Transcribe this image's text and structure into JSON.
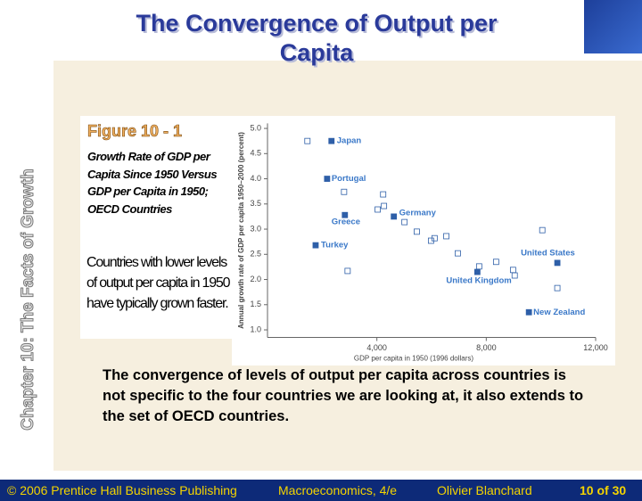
{
  "slide": {
    "title": "The Convergence of Output per Capita",
    "side_text": "Chapter 10: The Facts of Growth",
    "figure_label": "Figure 10 - 1",
    "caption": "Growth Rate of GDP per Capita Since 1950 Versus GDP per Capita in 1950; OECD Countries",
    "note": "Countries with lower levels of output per capita in 1950 have typically grown faster.",
    "body": "The convergence of levels of output per capita across countries is not specific to the four countries we are looking at, it also extends to the set of OECD countries.",
    "footer": [
      "© 2006 Prentice Hall Business Publishing",
      "Macroeconomics, 4/e",
      "Olivier Blanchard",
      "10 of 30"
    ]
  },
  "chart_data": {
    "type": "scatter",
    "x_label": "GDP per capita in 1950 (1996 dollars)",
    "y_label": "Annual growth rate of GDP per capita 1950–2000 (percent)",
    "xlim": [
      0,
      12000
    ],
    "ylim": [
      0.85,
      5.1
    ],
    "xticks": [
      {
        "value": 4000,
        "label": "4,000"
      },
      {
        "value": 8000,
        "label": "8,000"
      },
      {
        "value": 12000,
        "label": "12,000"
      }
    ],
    "yticks": [
      {
        "value": 1,
        "label": "1.0"
      },
      {
        "value": 1.5,
        "label": "1.5"
      },
      {
        "value": 2,
        "label": "2.0"
      },
      {
        "value": 2.5,
        "label": "2.5"
      },
      {
        "value": 3,
        "label": "3.0"
      },
      {
        "value": 3.5,
        "label": "3.5"
      },
      {
        "value": 4,
        "label": "4.0"
      },
      {
        "value": 4.5,
        "label": "4.5"
      },
      {
        "value": 5,
        "label": "5.0"
      }
    ],
    "label_color": "#3a78c8",
    "series": [
      {
        "color": "#2e5fa8",
        "fill": "#2e5fa8",
        "x": [
          2340,
          2180,
          2830,
          4620,
          1760,
          7675,
          10600,
          9560
        ],
        "values": [
          4.75,
          4.0,
          3.28,
          3.25,
          2.68,
          2.15,
          2.33,
          1.35
        ],
        "labels": [
          "Japan",
          "Portugal",
          "Greece",
          "Germany",
          "Turkey",
          "United Kingdom",
          "United States",
          "New Zealand"
        ]
      },
      {
        "color": "#2e5fa8",
        "fill": "none",
        "x": [
          1460,
          2800,
          4230,
          4260,
          4030,
          5010,
          5460,
          5980,
          6110,
          6540,
          6960,
          7740,
          8360,
          8980,
          9040,
          10050,
          10600,
          2930
        ],
        "values": [
          4.75,
          3.74,
          3.69,
          3.46,
          3.39,
          3.14,
          2.95,
          2.77,
          2.82,
          2.86,
          2.52,
          2.26,
          2.35,
          2.19,
          2.08,
          2.98,
          1.83,
          2.17
        ]
      }
    ]
  }
}
